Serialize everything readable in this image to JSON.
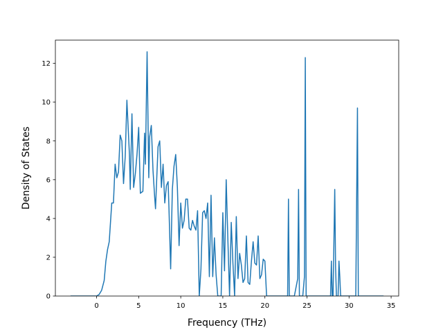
{
  "chart_data": {
    "type": "line",
    "title": "",
    "xlabel": "Frequency (THz)",
    "ylabel": "Density of States",
    "xlim": [
      -4.9,
      35.9
    ],
    "ylim": [
      0,
      13.2
    ],
    "x_ticks": [
      0,
      5,
      10,
      15,
      20,
      25,
      30,
      35
    ],
    "y_ticks": [
      0,
      2,
      4,
      6,
      8,
      10,
      12
    ],
    "grid": false,
    "legend": "none",
    "colors": {
      "line": "#1f77b4",
      "axes": "#000000",
      "background": "#ffffff"
    },
    "series": [
      {
        "x": [
          -3.1,
          0.0,
          0.3,
          0.6,
          0.9,
          1.1,
          1.3,
          1.5,
          1.8,
          2.0,
          2.2,
          2.4,
          2.6,
          2.8,
          3.0,
          3.2,
          3.4,
          3.6,
          3.9,
          4.0,
          4.2,
          4.4,
          4.6,
          4.8,
          5.0,
          5.2,
          5.5,
          5.7,
          5.8,
          6.0,
          6.2,
          6.3,
          6.5,
          6.7,
          6.9,
          7.0,
          7.3,
          7.5,
          7.7,
          7.9,
          8.1,
          8.3,
          8.5,
          8.6,
          8.8,
          9.0,
          9.2,
          9.4,
          9.6,
          9.8,
          10.0,
          10.2,
          10.4,
          10.6,
          10.8,
          11.0,
          11.2,
          11.4,
          11.6,
          11.8,
          12.0,
          12.2,
          12.4,
          12.6,
          12.8,
          13.0,
          13.2,
          13.4,
          13.6,
          13.8,
          14.0,
          14.2,
          14.4,
          14.6,
          14.8,
          15.0,
          15.2,
          15.4,
          15.6,
          15.8,
          16.0,
          16.2,
          16.4,
          16.6,
          16.8,
          17.0,
          17.2,
          17.4,
          17.6,
          17.8,
          18.0,
          18.2,
          18.4,
          18.6,
          18.8,
          19.0,
          19.2,
          19.4,
          19.6,
          19.8,
          20.0,
          20.2,
          22.7,
          22.8,
          22.9,
          23.5,
          23.9,
          24.0,
          24.1,
          24.5,
          24.7,
          24.8,
          24.9,
          27.8,
          27.9,
          28.0,
          28.1,
          28.3,
          28.4,
          28.5,
          28.7,
          28.8,
          28.9,
          29.0,
          30.8,
          31.0,
          31.1,
          34.1
        ],
        "y": [
          0.0,
          0.0,
          0.08,
          0.3,
          0.8,
          1.8,
          2.4,
          2.8,
          4.8,
          4.8,
          6.8,
          6.1,
          6.4,
          8.3,
          8.0,
          5.8,
          7.2,
          10.1,
          7.3,
          5.5,
          9.4,
          5.6,
          6.3,
          7.3,
          8.7,
          5.3,
          5.4,
          8.4,
          6.8,
          12.6,
          6.1,
          8.2,
          8.8,
          6.5,
          5.1,
          4.5,
          7.7,
          8.0,
          5.6,
          6.8,
          4.8,
          5.7,
          5.9,
          4.5,
          1.4,
          5.5,
          6.7,
          7.3,
          5.6,
          2.6,
          4.8,
          3.5,
          3.9,
          5.0,
          5.0,
          3.5,
          3.4,
          3.9,
          3.6,
          3.4,
          4.4,
          0.0,
          1.4,
          4.3,
          4.4,
          4.0,
          4.8,
          1.0,
          5.2,
          1.0,
          3.0,
          1.1,
          0.0,
          0.0,
          0.0,
          4.3,
          1.3,
          6.0,
          2.9,
          0.0,
          3.8,
          1.7,
          0.0,
          4.1,
          0.9,
          2.2,
          1.6,
          0.7,
          0.9,
          3.1,
          0.7,
          0.6,
          1.8,
          2.8,
          1.7,
          1.6,
          3.1,
          0.9,
          1.1,
          1.9,
          1.8,
          0.0,
          0.0,
          5.0,
          0.0,
          0.0,
          0.9,
          5.5,
          0.0,
          0.0,
          1.0,
          12.3,
          0.0,
          0.0,
          1.8,
          0.0,
          0.0,
          5.5,
          1.5,
          0.0,
          0.0,
          1.8,
          1.0,
          0.0,
          0.0,
          9.7,
          0.0,
          0.0
        ]
      }
    ]
  }
}
